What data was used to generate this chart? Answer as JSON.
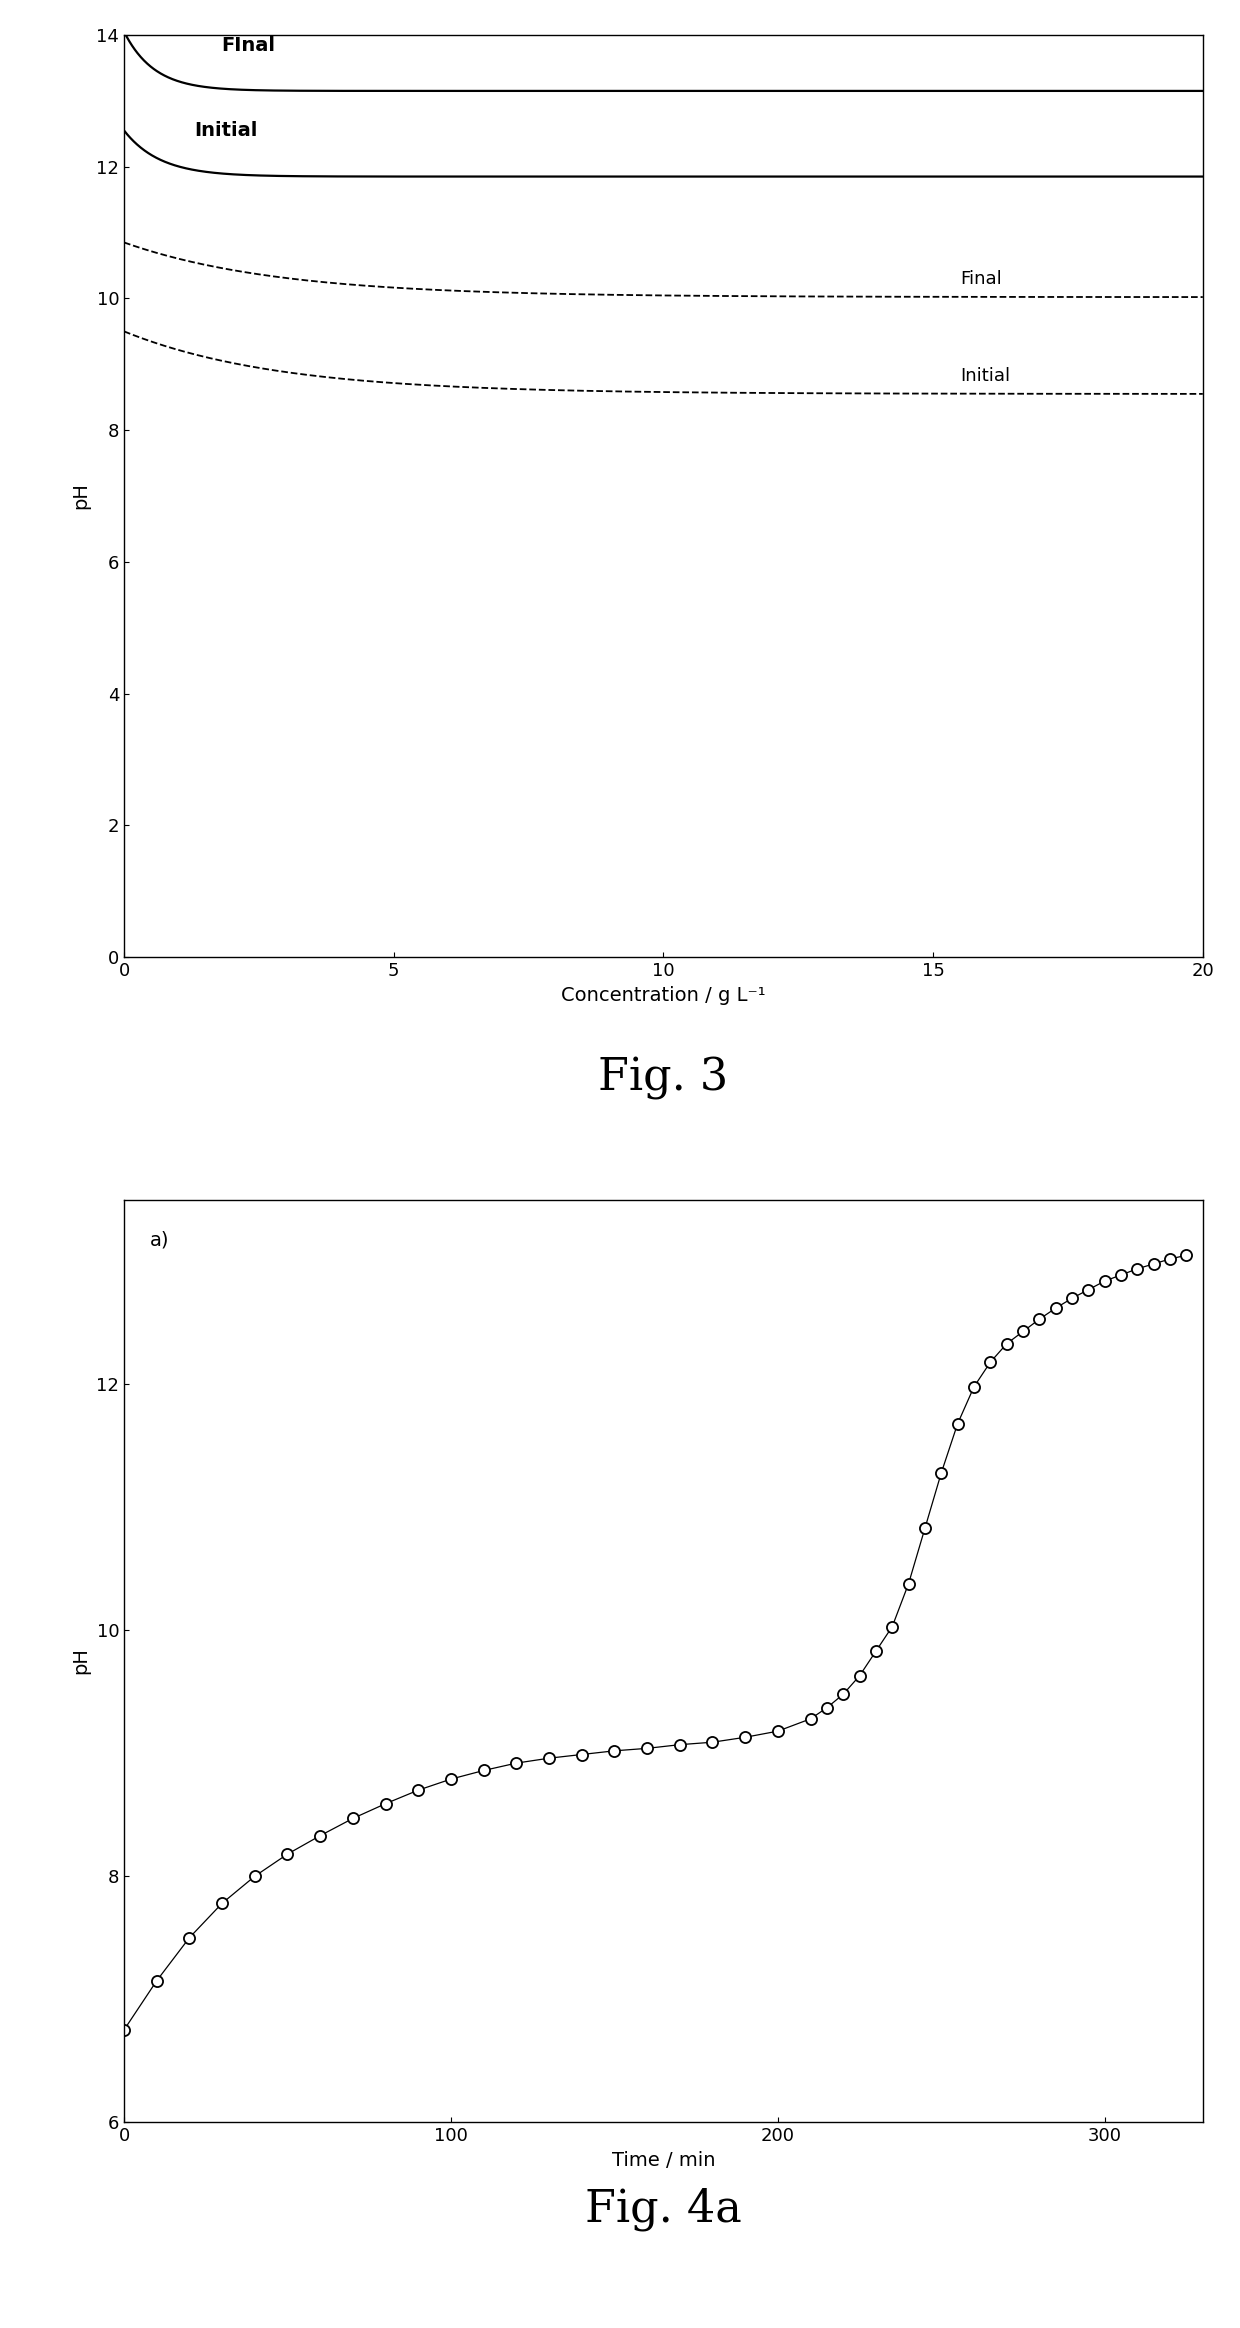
{
  "fig3": {
    "xlabel": "Concentration / g L⁻¹",
    "ylabel": "pH",
    "xlim": [
      0,
      20
    ],
    "ylim": [
      0,
      14
    ],
    "xticks": [
      0,
      5,
      10,
      15,
      20
    ],
    "yticks": [
      0,
      2,
      4,
      6,
      8,
      10,
      12,
      14
    ],
    "curves": [
      {
        "a": 14.05,
        "b": 13.15,
        "k": 1.8,
        "style": "solid",
        "lw": 1.6
      },
      {
        "a": 12.55,
        "b": 11.85,
        "k": 1.5,
        "style": "solid",
        "lw": 1.6
      },
      {
        "a": 10.85,
        "b": 10.02,
        "k": 0.35,
        "style": "dashed",
        "lw": 1.3
      },
      {
        "a": 9.5,
        "b": 8.55,
        "k": 0.35,
        "style": "dashed",
        "lw": 1.3
      }
    ],
    "ann_solid_final_x": 1.8,
    "ann_solid_final_y": 13.7,
    "ann_solid_init_x": 1.3,
    "ann_solid_init_y": 12.55,
    "ann_dash_final_x": 15.5,
    "ann_dash_final_y": 10.3,
    "ann_dash_init_x": 15.5,
    "ann_dash_init_y": 8.82,
    "caption": "Fig. 3",
    "caption_fontsize": 32
  },
  "fig4a": {
    "xlabel": "Time / min",
    "ylabel": "pH",
    "xlim": [
      0,
      330
    ],
    "ylim": [
      6,
      13.5
    ],
    "xticks": [
      0,
      100,
      200,
      300
    ],
    "yticks": [
      6,
      8,
      10,
      12
    ],
    "annotation": "a)",
    "ann_x": 8,
    "ann_y": 13.25,
    "data_x": [
      0,
      10,
      20,
      30,
      40,
      50,
      60,
      70,
      80,
      90,
      100,
      110,
      120,
      130,
      140,
      150,
      160,
      170,
      180,
      190,
      200,
      210,
      215,
      220,
      225,
      230,
      235,
      240,
      245,
      250,
      255,
      260,
      265,
      270,
      275,
      280,
      285,
      290,
      295,
      300,
      305,
      310,
      315,
      320,
      325
    ],
    "data_y": [
      6.75,
      7.15,
      7.5,
      7.78,
      8.0,
      8.18,
      8.33,
      8.47,
      8.59,
      8.7,
      8.79,
      8.86,
      8.92,
      8.96,
      8.99,
      9.02,
      9.04,
      9.07,
      9.09,
      9.13,
      9.18,
      9.28,
      9.37,
      9.48,
      9.63,
      9.83,
      10.03,
      10.38,
      10.83,
      11.28,
      11.68,
      11.98,
      12.18,
      12.33,
      12.43,
      12.53,
      12.62,
      12.7,
      12.77,
      12.84,
      12.89,
      12.94,
      12.98,
      13.02,
      13.05
    ],
    "caption": "Fig. 4a",
    "caption_fontsize": 32
  }
}
